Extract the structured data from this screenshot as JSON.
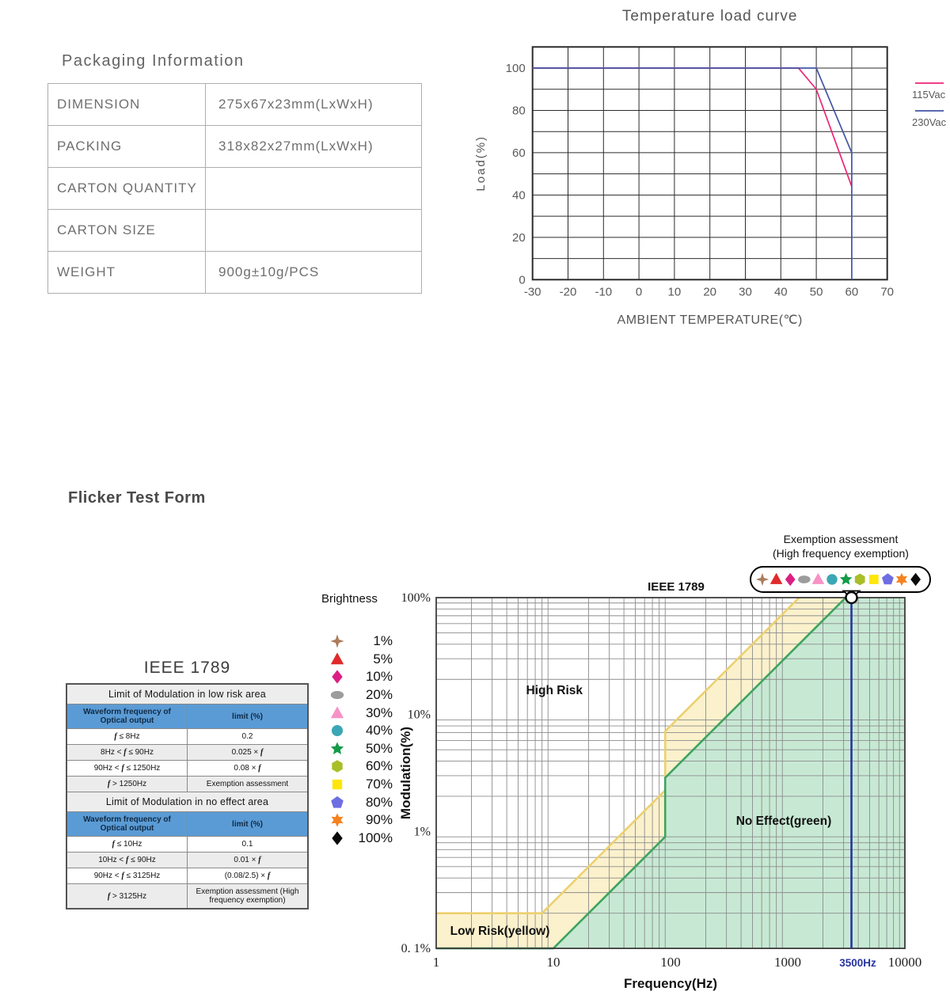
{
  "packaging": {
    "title": "Packaging Information",
    "rows": [
      {
        "label": "DIMENSION",
        "value": "275x67x23mm(LxWxH)"
      },
      {
        "label": "PACKING",
        "value": "318x82x27mm(LxWxH)"
      },
      {
        "label": "CARTON QUANTITY",
        "value": ""
      },
      {
        "label": "CARTON SIZE",
        "value": ""
      },
      {
        "label": "WEIGHT",
        "value": "900g±10g/PCS"
      }
    ]
  },
  "flicker": {
    "section_title": "Flicker Test Form",
    "table_title": "IEEE 1789",
    "table_sections": [
      {
        "header": "Limit of Modulation in low risk area",
        "col1": "Waveform frequency of Optical output",
        "col2": "limit (%)",
        "rows": [
          [
            "f ≤ 8Hz",
            "0.2"
          ],
          [
            "8Hz < f ≤ 90Hz",
            "0.025 × f"
          ],
          [
            "90Hz < f ≤ 1250Hz",
            "0.08 × f"
          ],
          [
            "f > 1250Hz",
            "Exemption assessment"
          ]
        ]
      },
      {
        "header": "Limit of Modulation in no effect area",
        "col1": "Waveform frequency of Optical output",
        "col2": "limit (%)",
        "rows": [
          [
            "f ≤ 10Hz",
            "0.1"
          ],
          [
            "10Hz < f ≤ 90Hz",
            "0.01 × f"
          ],
          [
            "90Hz < f ≤ 3125Hz",
            "(0.08/2.5) × f"
          ],
          [
            "f > 3125Hz",
            "Exemption assessment (High frequency exemption)"
          ]
        ]
      }
    ],
    "brightness_legend": {
      "title": "Brightness",
      "items": [
        {
          "label": "1%",
          "shape": "star4",
          "color": "#AC7C5C"
        },
        {
          "label": "5%",
          "shape": "triangle",
          "color": "#E02A2A"
        },
        {
          "label": "10%",
          "shape": "diamond",
          "color": "#DB1F84"
        },
        {
          "label": "20%",
          "shape": "ellipse",
          "color": "#9C9C9C"
        },
        {
          "label": "30%",
          "shape": "triangle",
          "color": "#F792C6"
        },
        {
          "label": "40%",
          "shape": "circle",
          "color": "#3BA7B4"
        },
        {
          "label": "50%",
          "shape": "star5",
          "color": "#149B48"
        },
        {
          "label": "60%",
          "shape": "hexagon",
          "color": "#A9BE27"
        },
        {
          "label": "70%",
          "shape": "square",
          "color": "#FFE60A"
        },
        {
          "label": "80%",
          "shape": "pentagon",
          "color": "#6E6EE2"
        },
        {
          "label": "90%",
          "shape": "star6",
          "color": "#F58220"
        },
        {
          "label": "100%",
          "shape": "diamond",
          "color": "#0A0A0A"
        }
      ]
    },
    "exemption_callout": {
      "line1": "Exemption assessment",
      "line2": "(High frequency exemption)"
    }
  },
  "chart_data": [
    {
      "type": "line",
      "title": "Temperature load curve",
      "xlabel": "AMBIENT TEMPERATURE(℃)",
      "ylabel": "Load(%)",
      "xlim": [
        -30,
        70
      ],
      "ylim": [
        0,
        110
      ],
      "xticks": [
        -30,
        -20,
        -10,
        0,
        10,
        20,
        30,
        40,
        50,
        60,
        70
      ],
      "yticks": [
        0,
        20,
        40,
        60,
        80,
        100
      ],
      "grid": true,
      "legend_position": "right",
      "series": [
        {
          "name": "115Vac",
          "color": "#EE2577",
          "points": [
            [
              -30,
              100
            ],
            [
              45,
              100
            ],
            [
              50,
              90
            ],
            [
              60,
              44
            ]
          ]
        },
        {
          "name": "230Vac",
          "color": "#4355A5",
          "points": [
            [
              -30,
              100
            ],
            [
              50,
              100
            ],
            [
              60,
              60
            ],
            [
              60,
              0
            ]
          ]
        }
      ]
    },
    {
      "type": "area",
      "title": "IEEE 1789",
      "xlabel": "Frequency(Hz)",
      "ylabel": "Modulation(%)",
      "x_scale": "log",
      "y_scale": "log",
      "xlim": [
        1,
        10000
      ],
      "ylim": [
        0.1,
        100
      ],
      "xticks": [
        {
          "f": 1,
          "label": "1"
        },
        {
          "f": 10,
          "label": "10"
        },
        {
          "f": 100,
          "label": "100"
        },
        {
          "f": 1000,
          "label": "1000"
        },
        {
          "f": 10000,
          "label": "10000"
        }
      ],
      "yticks": [
        {
          "m": 100,
          "label": "100%"
        },
        {
          "m": 10,
          "label": "10%"
        },
        {
          "m": 1,
          "label": "1%"
        },
        {
          "m": 0.1,
          "label": "0. 1%"
        }
      ],
      "grid": true,
      "regions": [
        {
          "name": "low-risk-boundary",
          "fill": "#FBF1CC",
          "line_color": "#EDD06E",
          "boundary": [
            [
              1,
              0.2
            ],
            [
              8,
              0.2
            ],
            [
              90,
              2.25
            ],
            [
              90,
              7.2
            ],
            [
              1250,
              100
            ]
          ]
        },
        {
          "name": "no-effect-boundary",
          "fill": "#C7E9D4",
          "line_color": "#3FA360",
          "boundary": [
            [
              1,
              0.1
            ],
            [
              10,
              0.1
            ],
            [
              90,
              0.9
            ],
            [
              90,
              2.88
            ],
            [
              3125,
              100
            ]
          ]
        }
      ],
      "labels": [
        {
          "text": "High Risk",
          "f": 10.2,
          "m": 16.2
        },
        {
          "text": "No Effect(green)",
          "f": 925,
          "m": 1.23
        },
        {
          "text": "Low Risk(yellow)",
          "f": 3.5,
          "m": 0.141
        }
      ],
      "marker_line": {
        "f": 3500,
        "label": "3500Hz",
        "color": "#2735A0"
      },
      "marker_point": {
        "f": 3500,
        "m": 100
      }
    }
  ]
}
